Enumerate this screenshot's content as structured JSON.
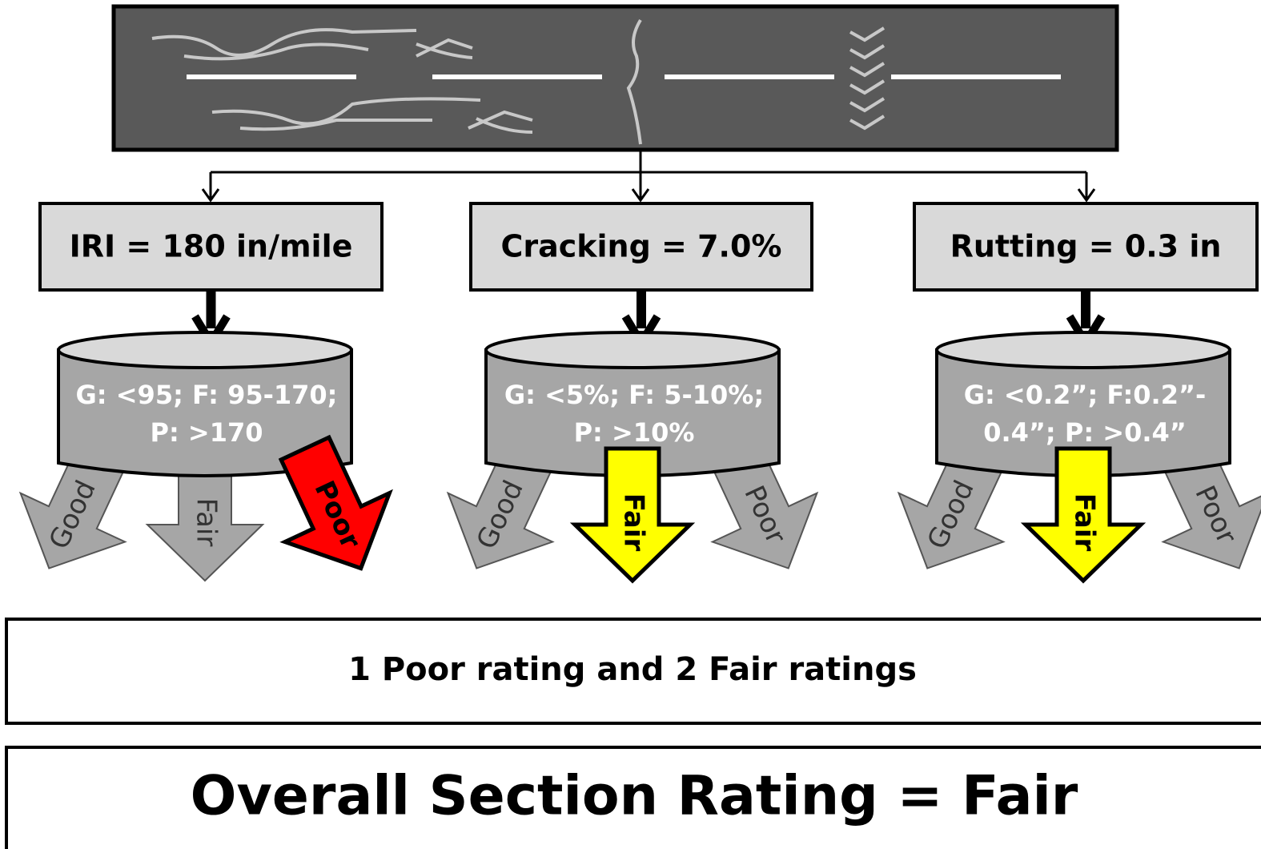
{
  "metrics": [
    {
      "label": "IRI = 180 in/mile",
      "criteria": [
        "G: <95; F: 95-170;",
        "P: >170"
      ],
      "arrows": [
        {
          "label": "Good",
          "color": "#a6a6a6"
        },
        {
          "label": "Fair",
          "color": "#a6a6a6"
        },
        {
          "label": "Poor",
          "color": "#ff0000"
        }
      ]
    },
    {
      "label": "Cracking = 7.0%",
      "criteria": [
        "G: <5%; F: 5-10%;",
        "P: >10%"
      ],
      "arrows": [
        {
          "label": "Good",
          "color": "#a6a6a6"
        },
        {
          "label": "Fair",
          "color": "#ffff00"
        },
        {
          "label": "Poor",
          "color": "#a6a6a6"
        }
      ]
    },
    {
      "label": "Rutting = 0.3 in",
      "criteria": [
        "G: <0.2”; F:0.2”-",
        "0.4”; P: >0.4”"
      ],
      "arrows": [
        {
          "label": "Good",
          "color": "#a6a6a6"
        },
        {
          "label": "Fair",
          "color": "#ffff00"
        },
        {
          "label": "Poor",
          "color": "#a6a6a6"
        }
      ]
    }
  ],
  "summary": "1 Poor rating and 2 Fair ratings",
  "overall": "Overall Section Rating = Fair"
}
